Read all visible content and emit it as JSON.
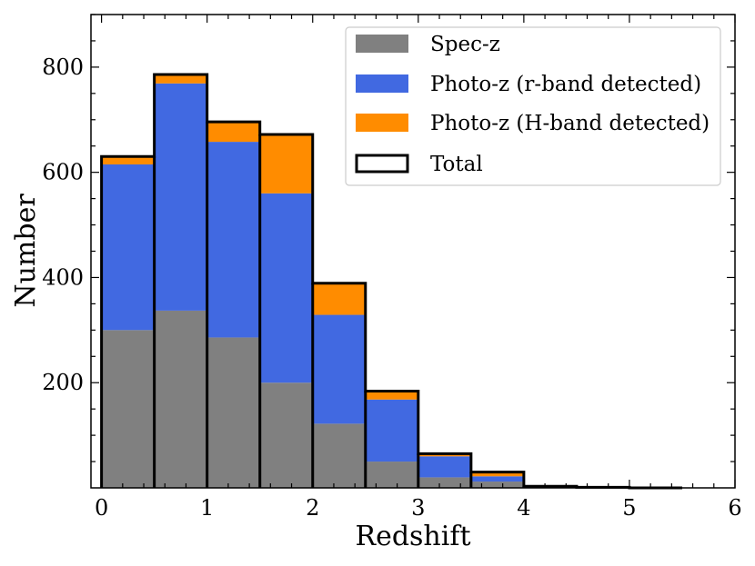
{
  "chart_data": {
    "type": "bar",
    "stacked": true,
    "title": "",
    "xlabel": "Redshift",
    "ylabel": "Number",
    "xlim": [
      -0.1,
      6.0
    ],
    "ylim": [
      0,
      900
    ],
    "xticks": [
      0,
      1,
      2,
      3,
      4,
      5,
      6
    ],
    "xtick_labels": [
      "0",
      "1",
      "2",
      "3",
      "4",
      "5",
      "6"
    ],
    "yticks": [
      200,
      400,
      600,
      800
    ],
    "ytick_labels": [
      "200",
      "400",
      "600",
      "800"
    ],
    "bin_edges": [
      0,
      0.5,
      1.0,
      1.5,
      2.0,
      2.5,
      3.0,
      3.5,
      4.0,
      4.5,
      5.0,
      5.5
    ],
    "series": [
      {
        "name": "Spec-z",
        "color": "#808080",
        "values": [
          300,
          337,
          286,
          200,
          122,
          50,
          20,
          12,
          2,
          1,
          0
        ]
      },
      {
        "name": "Photo-z (r-band detected)",
        "color": "#4169E1",
        "values": [
          315,
          432,
          372,
          360,
          207,
          118,
          40,
          10,
          1,
          0,
          0
        ]
      },
      {
        "name": "Photo-z (H-band detected)",
        "color": "#FF8C00",
        "values": [
          15,
          17,
          38,
          112,
          60,
          16,
          5,
          8,
          0,
          0,
          0
        ]
      }
    ],
    "total": {
      "name": "Total",
      "edgecolor": "#000000",
      "values": [
        630,
        786,
        696,
        672,
        389,
        184,
        65,
        30,
        3,
        1,
        0
      ]
    },
    "legend": {
      "placement": "top-right",
      "entries": [
        "Spec-z",
        "Photo-z (r-band detected)",
        "Photo-z (H-band detected)",
        "Total"
      ]
    },
    "grid": false
  }
}
